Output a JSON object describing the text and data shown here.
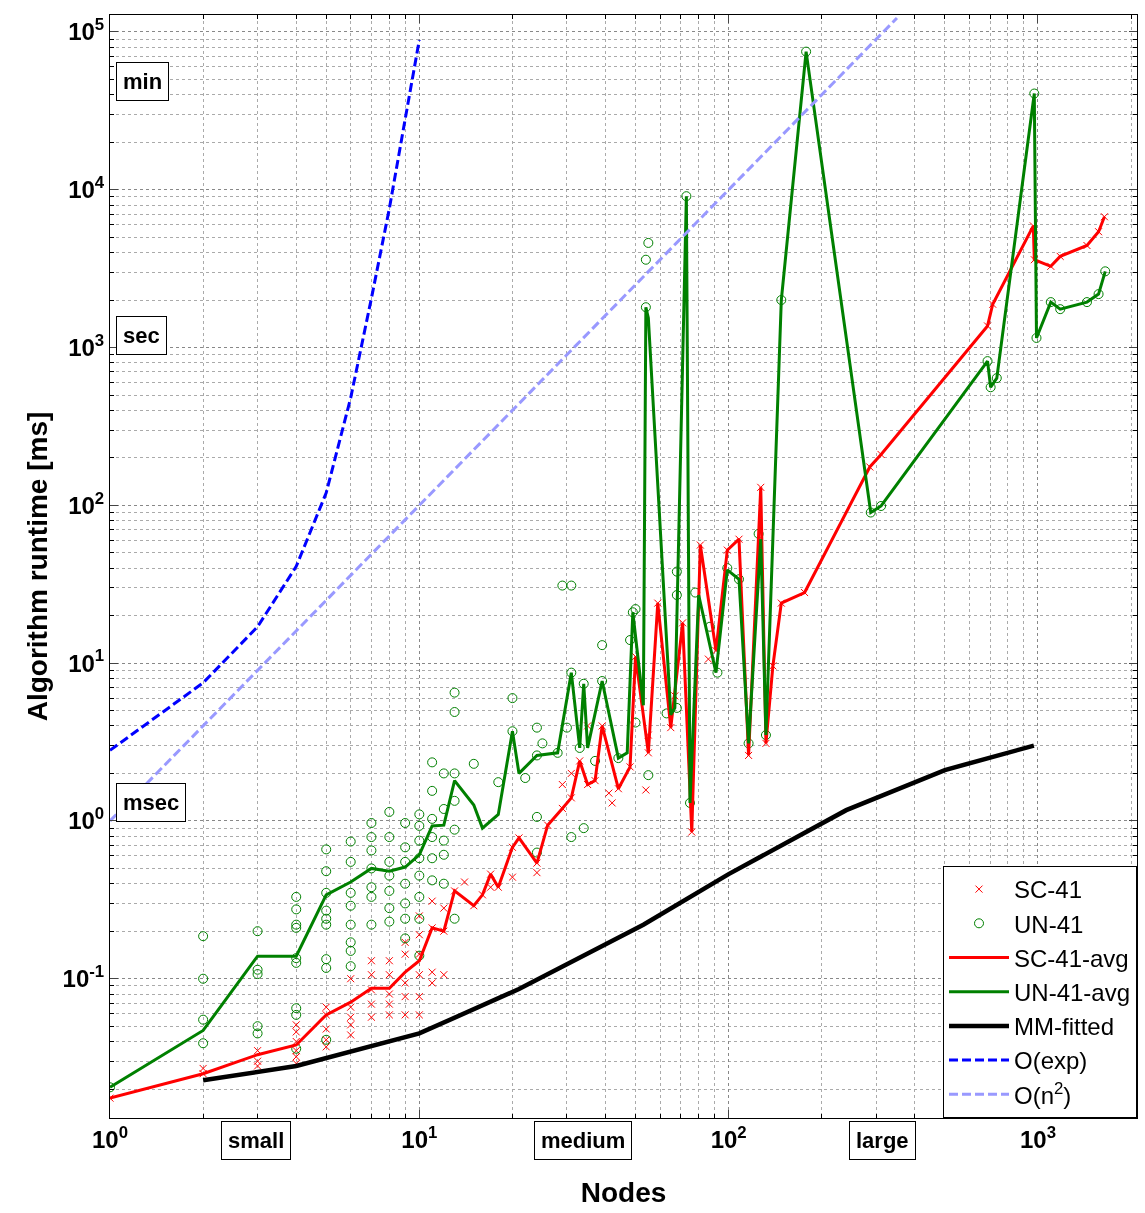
{
  "chart_data": {
    "type": "line",
    "xlabel": "Nodes",
    "ylabel": "Algorithm runtime [ms]",
    "log": "xy",
    "grid": true,
    "legend": "bottom right",
    "xlim": [
      1,
      2090
    ],
    "ylim": [
      0.0131,
      128000
    ],
    "xticks": [
      {
        "value": 1,
        "label": "10$^{0}$"
      },
      {
        "value": 10,
        "label": "10$^{1}$"
      },
      {
        "value": 100,
        "label": "10$^{2}$"
      },
      {
        "value": 1000,
        "label": "10$^{3}$"
      }
    ],
    "yticks": [
      {
        "value": 0.1,
        "label": "10$^{-1}$"
      },
      {
        "value": 1,
        "label": "10$^{0}$"
      },
      {
        "value": 10,
        "label": "10$^{1}$"
      },
      {
        "value": 100,
        "label": "10$^{2}$"
      },
      {
        "value": 1000,
        "label": "10$^{3}$"
      },
      {
        "value": 10000,
        "label": "10$^{4}$"
      },
      {
        "value": 100000,
        "label": "10$^{5}$"
      }
    ],
    "annotations": [
      "min",
      "sec",
      "msec",
      "small",
      "medium",
      "large"
    ],
    "series": [
      {
        "name": "SC-41",
        "type": "scatter",
        "marker": "cross",
        "color": "#ff0000",
        "x": [
          1,
          2,
          2,
          3,
          3,
          3,
          4,
          4,
          4,
          4,
          4,
          4,
          5,
          5,
          5,
          5,
          5,
          6,
          6,
          6,
          6,
          6,
          7,
          7,
          7,
          7,
          7,
          8,
          8,
          8,
          8,
          8,
          9,
          9,
          9,
          9,
          9,
          10,
          10,
          10,
          10,
          10,
          10,
          11,
          11,
          11,
          11,
          12,
          12,
          12,
          13,
          14,
          15,
          16,
          17,
          17,
          18,
          20,
          20,
          21,
          24,
          24,
          26,
          29,
          29,
          31,
          31,
          33,
          35,
          35,
          37,
          39,
          41,
          42,
          44,
          48,
          50,
          54,
          55,
          55,
          59,
          65,
          67,
          71,
          76,
          81,
          86,
          91,
          99,
          108,
          116,
          127,
          132,
          139,
          148,
          176,
          286,
          311,
          687,
          714,
          966,
          973,
          1100,
          1180,
          1440,
          1570,
          1640
        ],
        "values": [
          0.0175,
          0.025,
          0.027,
          0.035,
          0.03,
          0.028,
          0.051,
          0.046,
          0.04,
          0.035,
          0.032,
          0.029,
          0.066,
          0.059,
          0.048,
          0.041,
          0.037,
          0.1,
          0.066,
          0.057,
          0.051,
          0.044,
          0.13,
          0.106,
          0.085,
          0.069,
          0.057,
          0.13,
          0.106,
          0.08,
          0.069,
          0.059,
          0.17,
          0.143,
          0.094,
          0.077,
          0.059,
          0.25,
          0.19,
          0.143,
          0.106,
          0.077,
          0.059,
          0.31,
          0.21,
          0.11,
          0.094,
          0.28,
          0.2,
          0.106,
          0.36,
          0.41,
          0.29,
          0.34,
          0.46,
          0.38,
          0.38,
          0.68,
          0.44,
          0.78,
          0.54,
          0.47,
          0.94,
          1.2,
          1.7,
          1.4,
          2.0,
          2.4,
          1.7,
          4.0,
          1.8,
          4.0,
          1.5,
          1.3,
          1.6,
          2.2,
          11,
          1.57,
          2.7,
          3.5,
          24,
          3.9,
          6.2,
          18,
          0.85,
          56,
          10.6,
          12,
          52,
          61,
          2.6,
          130,
          3.1,
          9.6,
          24,
          28,
          175,
          210,
          1370,
          1880,
          5900,
          3600,
          3270,
          3780,
          4430,
          5420,
          6740
        ]
      },
      {
        "name": "UN-41",
        "type": "scatter",
        "marker": "circle",
        "color": "#008000",
        "x": [
          1,
          2,
          2,
          2,
          2,
          3,
          3,
          3,
          3,
          3,
          4,
          4,
          4,
          4,
          4,
          4,
          4,
          4,
          4,
          5,
          5,
          5,
          5,
          5,
          5,
          5,
          5,
          5,
          6,
          6,
          6,
          6,
          6,
          6,
          6,
          6,
          7,
          7,
          7,
          7,
          7,
          7,
          7,
          8,
          8,
          8,
          8,
          8,
          8,
          8,
          9,
          9,
          9,
          9,
          9,
          9,
          9,
          10,
          10,
          10,
          10,
          10,
          10,
          10,
          10,
          11,
          11,
          11,
          11,
          11,
          11,
          12,
          12,
          12,
          12,
          12,
          13,
          13,
          13,
          13,
          13,
          13,
          15,
          18,
          20,
          20,
          22,
          24,
          24,
          24,
          24,
          25,
          28,
          29,
          30,
          31,
          31,
          31,
          33,
          34,
          34,
          37,
          39,
          39,
          44,
          48,
          49,
          50,
          50,
          54,
          54,
          55,
          55,
          63,
          68,
          68,
          68,
          73,
          75,
          78,
          87,
          92,
          99,
          108,
          116,
          125,
          132,
          148,
          178,
          288,
          311,
          687,
          703,
          736,
          973,
          989,
          1100,
          1180,
          1440,
          1570,
          1650
        ],
        "values": [
          0.0205,
          0.186,
          0.1,
          0.055,
          0.039,
          0.2,
          0.114,
          0.107,
          0.05,
          0.045,
          0.33,
          0.275,
          0.22,
          0.21,
          0.135,
          0.126,
          0.065,
          0.059,
          0.036,
          0.66,
          0.48,
          0.35,
          0.27,
          0.24,
          0.22,
          0.133,
          0.117,
          0.041,
          0.74,
          0.55,
          0.35,
          0.29,
          0.22,
          0.17,
          0.15,
          0.12,
          0.97,
          0.79,
          0.65,
          0.5,
          0.38,
          0.33,
          0.22,
          1.14,
          0.79,
          0.55,
          0.45,
          0.36,
          0.28,
          0.23,
          0.97,
          0.68,
          0.55,
          0.4,
          0.3,
          0.24,
          0.18,
          1.1,
          0.93,
          0.75,
          0.58,
          0.45,
          0.33,
          0.24,
          0.14,
          2.35,
          1.55,
          1.03,
          0.79,
          0.58,
          0.42,
          2.0,
          1.19,
          0.75,
          0.61,
          0.4,
          6.5,
          4.9,
          2.0,
          1.34,
          0.88,
          0.24,
          2.3,
          1.76,
          6.0,
          3.7,
          1.87,
          3.9,
          1.06,
          0.63,
          2.6,
          3.1,
          2.7,
          31,
          3.9,
          31,
          0.79,
          8.7,
          2.9,
          0.9,
          7.4,
          2.4,
          13,
          7.7,
          2.5,
          14,
          21,
          4.2,
          22,
          3600,
          1800,
          4600,
          1.95,
          4.8,
          5.2,
          27,
          38,
          9100,
          1.3,
          28,
          17,
          8.7,
          40,
          34,
          3.1,
          66,
          3.5,
          2000,
          75000,
          90,
          99,
          820,
          560,
          640,
          40700,
          1150,
          1940,
          1750,
          1940,
          2180,
          3040
        ]
      },
      {
        "name": "SC-41-avg",
        "line_style": "solid",
        "color": "#ff0000",
        "x": [
          1,
          2,
          3,
          4,
          5,
          6,
          7,
          8,
          9,
          10,
          11,
          12,
          13,
          15,
          16,
          17,
          18,
          20,
          21,
          24,
          26,
          29,
          31,
          33,
          35,
          37,
          39,
          44,
          48,
          50,
          55,
          59,
          65,
          71,
          76,
          81,
          91,
          99,
          108,
          116,
          127,
          132,
          139,
          148,
          176,
          286,
          311,
          687,
          714,
          966,
          973,
          1100,
          1180,
          1440,
          1570,
          1640
        ],
        "values": [
          0.0175,
          0.025,
          0.033,
          0.038,
          0.059,
          0.071,
          0.087,
          0.087,
          0.11,
          0.13,
          0.21,
          0.2,
          0.36,
          0.29,
          0.34,
          0.46,
          0.38,
          0.68,
          0.78,
          0.54,
          0.94,
          1.2,
          1.4,
          2.4,
          1.7,
          1.8,
          4.0,
          1.6,
          2.2,
          11,
          2.7,
          24,
          3.9,
          18,
          0.85,
          56,
          12,
          52,
          61,
          2.6,
          130,
          3.1,
          9.6,
          24,
          28,
          175,
          210,
          1370,
          1880,
          5900,
          3600,
          3270,
          3780,
          4430,
          5420,
          6740
        ]
      },
      {
        "name": "UN-41-avg",
        "line_style": "solid",
        "color": "#008000",
        "x": [
          1,
          2,
          3,
          4,
          5,
          6,
          7,
          8,
          9,
          10,
          11,
          12,
          13,
          15,
          16,
          18,
          20,
          21,
          24,
          28,
          31,
          33,
          34,
          35,
          39,
          44,
          47,
          49,
          53,
          54,
          55,
          65,
          67,
          73,
          75,
          80,
          91,
          99,
          108,
          116,
          127,
          132,
          148,
          178,
          288,
          311,
          687,
          703,
          736,
          973,
          989,
          1100,
          1180,
          1440,
          1570,
          1650
        ],
        "values": [
          0.0205,
          0.047,
          0.139,
          0.139,
          0.34,
          0.41,
          0.5,
          0.48,
          0.51,
          0.61,
          0.93,
          0.94,
          1.8,
          1.26,
          0.9,
          1.1,
          3.7,
          2.0,
          2.6,
          2.7,
          8.7,
          2.9,
          7.4,
          2.9,
          7.7,
          2.5,
          2.7,
          21,
          5.4,
          1800,
          1540,
          4.7,
          5.2,
          9100,
          1.3,
          27,
          8.7,
          39,
          34,
          3.1,
          61,
          3.5,
          2000,
          75000,
          90,
          99,
          820,
          560,
          640,
          40700,
          1150,
          1940,
          1750,
          1940,
          2180,
          3040
        ]
      },
      {
        "name": "MM-fitted",
        "line_style": "solid",
        "color": "#000000",
        "x": [
          2,
          4,
          10,
          21,
          53,
          100,
          240,
          500,
          970
        ],
        "values": [
          0.0227,
          0.028,
          0.045,
          0.086,
          0.22,
          0.46,
          1.17,
          2.1,
          3.0
        ]
      },
      {
        "name": "O(exp)",
        "line_style": "dashed",
        "color": "#0000ff",
        "x": [
          1,
          2,
          3,
          4,
          5,
          6,
          7,
          8,
          9,
          10
        ],
        "values": [
          2.8,
          7.5,
          17,
          41,
          120,
          480,
          2050,
          7600,
          28000,
          89000
        ]
      },
      {
        "name": "O(n$^{2}$)",
        "line_style": "dashed",
        "color": "#9999ff",
        "x": [
          1,
          10,
          100,
          350
        ],
        "values": [
          1,
          100,
          10000,
          122500
        ]
      }
    ]
  }
}
